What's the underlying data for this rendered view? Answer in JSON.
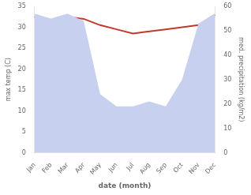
{
  "chart_data": {
    "type": "line",
    "xlabel": "date (month)",
    "ylabel": "max temp (C)",
    "y2label": "med. precipitation (kg/m2)",
    "categories": [
      "Jan",
      "Feb",
      "Mar",
      "Apr",
      "May",
      "Jun",
      "Jul",
      "Aug",
      "Sep",
      "Oct",
      "Nov",
      "Dec"
    ],
    "series": [
      {
        "type": "area",
        "axis": "y2",
        "color": "#c8d0f0",
        "values": [
          57,
          55,
          57,
          54,
          24,
          19,
          19,
          21,
          19,
          30,
          53,
          57
        ]
      },
      {
        "type": "line",
        "color": "#c0392b",
        "values": [
          32.5,
          31.0,
          32.5,
          32.0,
          30.5,
          29.5,
          28.5,
          29.0,
          29.5,
          30.0,
          30.5,
          33.0
        ]
      }
    ],
    "ylim": [
      0,
      35
    ],
    "yticks": [
      0,
      5,
      10,
      15,
      20,
      25,
      30,
      35
    ],
    "y2lim": [
      0,
      60
    ],
    "y2ticks": [
      0,
      10,
      20,
      30,
      40,
      50,
      60
    ],
    "grid": false
  }
}
